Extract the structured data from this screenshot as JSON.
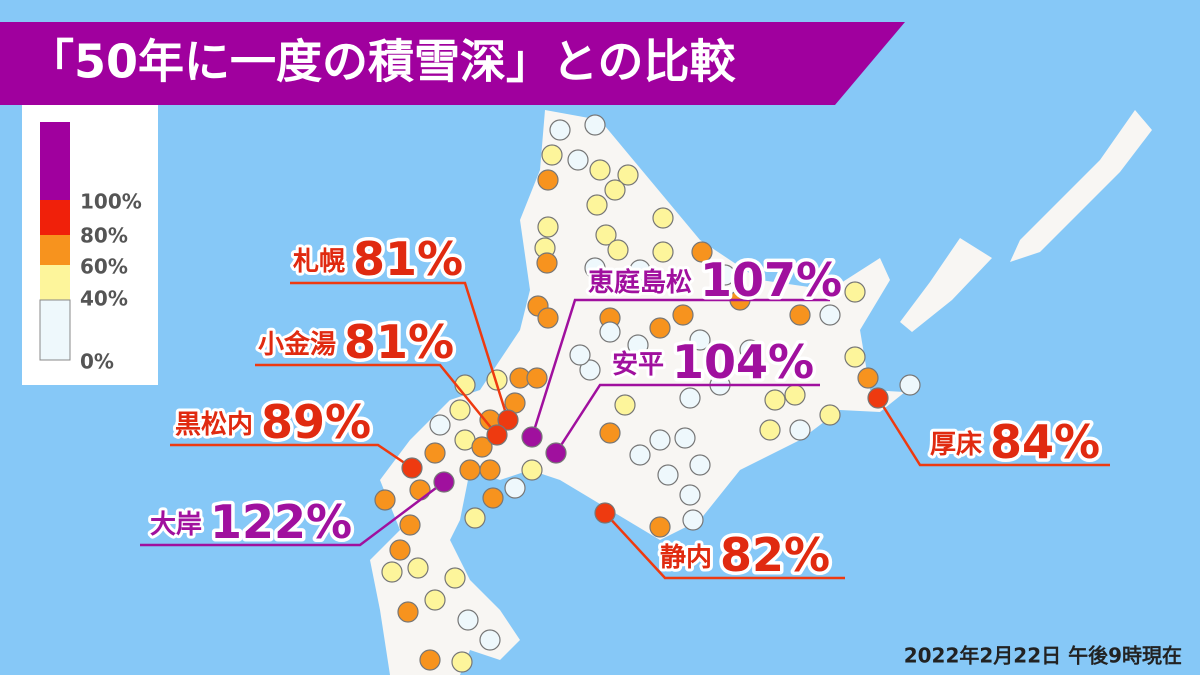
{
  "title": "「50年に一度の積雪深」との比較",
  "legend": {
    "labels": [
      "100%",
      "80%",
      "60%",
      "40%",
      "0%"
    ]
  },
  "callouts": [
    {
      "name": "札幌",
      "value": "81%"
    },
    {
      "name": "小金湯",
      "value": "81%"
    },
    {
      "name": "黒松内",
      "value": "89%"
    },
    {
      "name": "大岸",
      "value": "122%"
    },
    {
      "name": "恵庭島松",
      "value": "107%"
    },
    {
      "name": "安平",
      "value": "104%"
    },
    {
      "name": "厚床",
      "value": "84%"
    },
    {
      "name": "静内",
      "value": "82%"
    }
  ],
  "footnote": "2022年2月22日 午後9時現在"
}
